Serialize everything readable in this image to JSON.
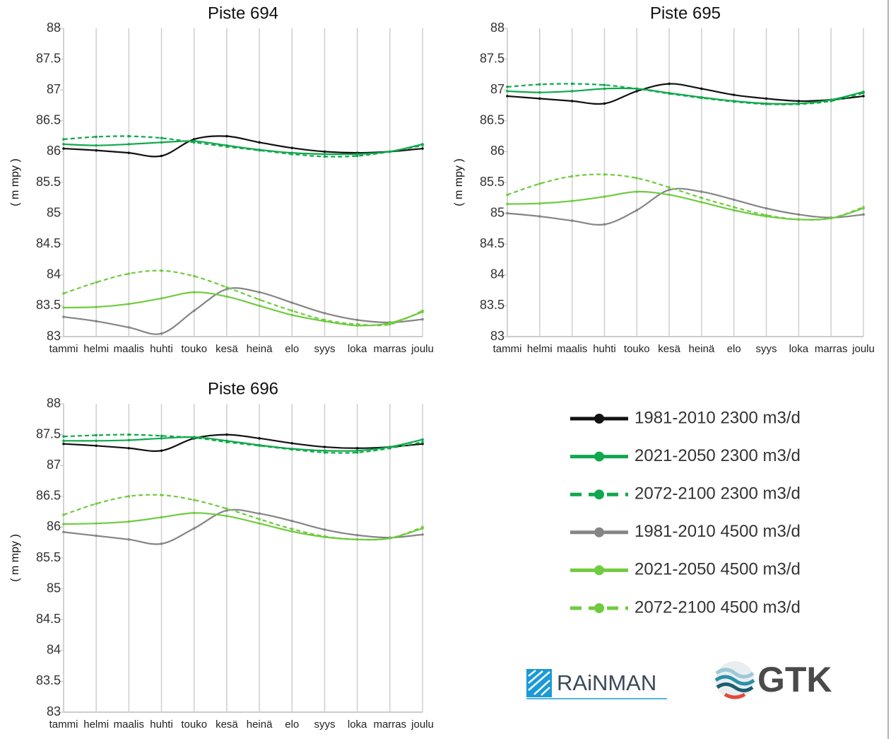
{
  "chart_data": [
    {
      "type": "line",
      "title": "Piste 694",
      "y_label": "( m mpy )",
      "categories": [
        "tammi",
        "helmi",
        "maalis",
        "huhti",
        "touko",
        "kesä",
        "heinä",
        "elo",
        "syys",
        "loka",
        "marras",
        "joulu"
      ],
      "ylim": [
        83,
        88
      ],
      "yticks": [
        83,
        83.5,
        84,
        84.5,
        85,
        85.5,
        86,
        86.5,
        87,
        87.5,
        88
      ],
      "grid": "x",
      "series": [
        {
          "name": "1981-2010 2300 m3/d",
          "color": "#111111",
          "dash": false,
          "values": [
            86.05,
            86.02,
            85.98,
            85.93,
            86.2,
            86.25,
            86.15,
            86.06,
            86.0,
            85.98,
            86.0,
            86.05
          ]
        },
        {
          "name": "2021-2050 2300 m3/d",
          "color": "#0fa84c",
          "dash": false,
          "values": [
            86.12,
            86.1,
            86.12,
            86.15,
            86.17,
            86.1,
            86.03,
            85.98,
            85.96,
            85.96,
            86.0,
            86.12
          ]
        },
        {
          "name": "2072-2100 2300 m3/d",
          "color": "#0fa84c",
          "dash": true,
          "values": [
            86.2,
            86.24,
            86.25,
            86.22,
            86.15,
            86.08,
            86.02,
            85.96,
            85.92,
            85.93,
            86.0,
            86.1
          ]
        },
        {
          "name": "1981-2010 4500 m3/d",
          "color": "#858585",
          "dash": false,
          "values": [
            83.32,
            83.25,
            83.15,
            83.05,
            83.42,
            83.77,
            83.72,
            83.55,
            83.38,
            83.27,
            83.23,
            83.28
          ]
        },
        {
          "name": "2021-2050 4500 m3/d",
          "color": "#6fcb3f",
          "dash": false,
          "values": [
            83.47,
            83.48,
            83.53,
            83.62,
            83.72,
            83.65,
            83.5,
            83.35,
            83.25,
            83.18,
            83.22,
            83.4
          ]
        },
        {
          "name": "2072-2100 4500 m3/d",
          "color": "#6fcb3f",
          "dash": true,
          "values": [
            83.7,
            83.88,
            84.02,
            84.07,
            83.98,
            83.8,
            83.6,
            83.42,
            83.27,
            83.2,
            83.2,
            83.42
          ]
        }
      ]
    },
    {
      "type": "line",
      "title": "Piste 695",
      "y_label": "( m mpy )",
      "categories": [
        "tammi",
        "helmi",
        "maalis",
        "huhti",
        "touko",
        "kesä",
        "heinä",
        "elo",
        "syys",
        "loka",
        "marras",
        "joulu"
      ],
      "ylim": [
        83,
        88
      ],
      "yticks": [
        83,
        83.5,
        84,
        84.5,
        85,
        85.5,
        86,
        86.5,
        87,
        87.5,
        88
      ],
      "grid": "x",
      "series": [
        {
          "color": "#111111",
          "dash": false,
          "values": [
            86.9,
            86.86,
            86.82,
            86.78,
            86.98,
            87.1,
            87.02,
            86.92,
            86.86,
            86.82,
            86.84,
            86.9
          ]
        },
        {
          "color": "#0fa84c",
          "dash": false,
          "values": [
            86.98,
            86.96,
            86.98,
            87.02,
            87.02,
            86.95,
            86.88,
            86.82,
            86.78,
            86.78,
            86.84,
            86.97
          ]
        },
        {
          "color": "#0fa84c",
          "dash": true,
          "values": [
            87.05,
            87.09,
            87.1,
            87.08,
            87.02,
            86.94,
            86.87,
            86.81,
            86.77,
            86.77,
            86.82,
            86.95
          ]
        },
        {
          "color": "#858585",
          "dash": false,
          "values": [
            85.0,
            84.95,
            84.88,
            84.82,
            85.05,
            85.38,
            85.35,
            85.22,
            85.08,
            84.98,
            84.93,
            84.98
          ]
        },
        {
          "color": "#6fcb3f",
          "dash": false,
          "values": [
            85.15,
            85.16,
            85.2,
            85.27,
            85.35,
            85.3,
            85.18,
            85.05,
            84.95,
            84.9,
            84.92,
            85.08
          ]
        },
        {
          "color": "#6fcb3f",
          "dash": true,
          "values": [
            85.3,
            85.48,
            85.6,
            85.63,
            85.57,
            85.42,
            85.25,
            85.1,
            84.97,
            84.9,
            84.92,
            85.1
          ]
        }
      ]
    },
    {
      "type": "line",
      "title": "Piste 696",
      "y_label": "( m mpy )",
      "categories": [
        "tammi",
        "helmi",
        "maalis",
        "huhti",
        "touko",
        "kesä",
        "heinä",
        "elo",
        "syys",
        "loka",
        "marras",
        "joulu"
      ],
      "ylim": [
        83,
        88
      ],
      "yticks": [
        83,
        83.5,
        84,
        84.5,
        85,
        85.5,
        86,
        86.5,
        87,
        87.5,
        88
      ],
      "grid": "x",
      "series": [
        {
          "color": "#111111",
          "dash": false,
          "values": [
            87.35,
            87.32,
            87.28,
            87.24,
            87.44,
            87.5,
            87.44,
            87.36,
            87.3,
            87.28,
            87.3,
            87.35
          ]
        },
        {
          "color": "#0fa84c",
          "dash": false,
          "values": [
            87.4,
            87.4,
            87.41,
            87.44,
            87.46,
            87.4,
            87.33,
            87.27,
            87.24,
            87.24,
            87.3,
            87.42
          ]
        },
        {
          "color": "#0fa84c",
          "dash": true,
          "values": [
            87.47,
            87.49,
            87.5,
            87.48,
            87.45,
            87.38,
            87.32,
            87.26,
            87.21,
            87.21,
            87.28,
            87.38
          ]
        },
        {
          "color": "#858585",
          "dash": false,
          "values": [
            85.92,
            85.86,
            85.8,
            85.73,
            85.98,
            86.27,
            86.22,
            86.1,
            85.96,
            85.87,
            85.83,
            85.88
          ]
        },
        {
          "color": "#6fcb3f",
          "dash": false,
          "values": [
            86.05,
            86.06,
            86.09,
            86.16,
            86.23,
            86.18,
            86.06,
            85.93,
            85.84,
            85.8,
            85.82,
            85.98
          ]
        },
        {
          "color": "#6fcb3f",
          "dash": true,
          "values": [
            86.2,
            86.38,
            86.5,
            86.52,
            86.44,
            86.3,
            86.13,
            85.97,
            85.85,
            85.8,
            85.82,
            86.0
          ]
        }
      ]
    }
  ],
  "logos": [
    "RAiNMAN",
    "GTK"
  ]
}
